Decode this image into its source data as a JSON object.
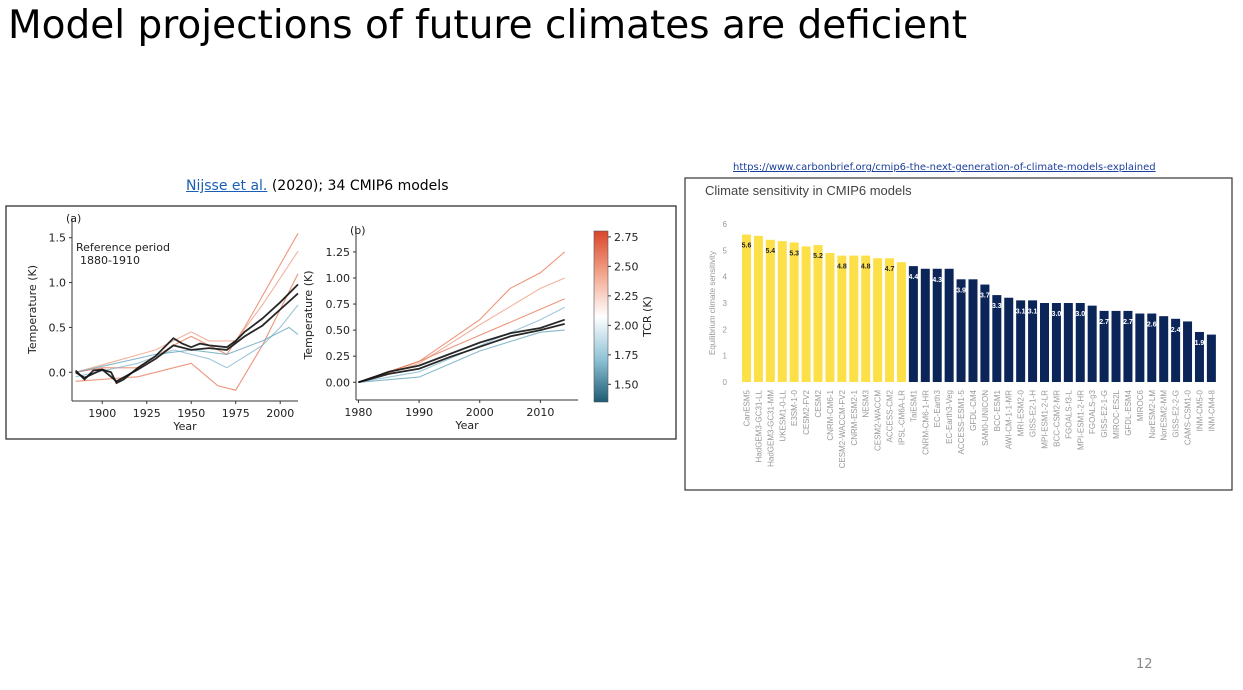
{
  "slide": {
    "title": "Model projections of future climates are deficient",
    "page_number": "12"
  },
  "left_figure": {
    "citation_link": "Nijsse et al.",
    "citation_rest": "(2020); 34 CMIP6 models"
  },
  "right_figure": {
    "source_url": "https://www.carbonbrief.org/cmip6-the-next-generation-of-climate-models-explained"
  },
  "chart_data": [
    {
      "type": "line",
      "panel_label": "(a)",
      "annotation": "Reference period\n1880-1910",
      "xlabel": "Year",
      "ylabel": "Temperature (K)",
      "xlim": [
        1883,
        2010
      ],
      "ylim": [
        -0.32,
        1.72
      ],
      "xticks": [
        1900,
        1925,
        1950,
        1975,
        2000
      ],
      "yticks": [
        "0.0",
        "0.5",
        "1.0",
        "1.5"
      ],
      "series": [
        {
          "color": "#e8714f",
          "x": [
            1885,
            1900,
            1920,
            1940,
            1950,
            1960,
            1970,
            1980,
            1990,
            2000,
            2010
          ],
          "y": [
            0,
            0.05,
            0.05,
            0.3,
            0.4,
            0.3,
            0.2,
            0.5,
            0.85,
            1.2,
            1.55
          ]
        },
        {
          "color": "#ee9a80",
          "x": [
            1885,
            1930,
            1950,
            1960,
            1975,
            1990,
            2010
          ],
          "y": [
            0,
            0.25,
            0.45,
            0.35,
            0.35,
            0.75,
            1.35
          ]
        },
        {
          "color": "#e8714f",
          "x": [
            1885,
            1920,
            1950,
            1965,
            1975,
            1990,
            2000,
            2010
          ],
          "y": [
            -0.1,
            -0.05,
            0.1,
            -0.15,
            -0.2,
            0.3,
            0.7,
            1.1
          ]
        },
        {
          "color": "#7fb6cc",
          "x": [
            1885,
            1920,
            1940,
            1960,
            1970,
            1990,
            2000,
            2010
          ],
          "y": [
            -0.05,
            0.1,
            0.25,
            0.15,
            0.05,
            0.3,
            0.5,
            0.75
          ]
        },
        {
          "color": "#5fa1b8",
          "x": [
            1885,
            1930,
            1950,
            1970,
            1990,
            2005,
            2010
          ],
          "y": [
            0,
            0.2,
            0.25,
            0.2,
            0.35,
            0.5,
            0.42
          ]
        },
        {
          "color": "#111111",
          "x": [
            1885,
            1890,
            1895,
            1900,
            1905,
            1908,
            1912,
            1920,
            1930,
            1940,
            1945,
            1950,
            1955,
            1960,
            1970,
            1975,
            1980,
            1990,
            2000,
            2010
          ],
          "y": [
            0.02,
            -0.08,
            0.02,
            0.03,
            0,
            -0.12,
            -0.08,
            0.05,
            0.18,
            0.38,
            0.32,
            0.28,
            0.32,
            0.3,
            0.28,
            0.35,
            0.45,
            0.6,
            0.78,
            0.98
          ]
        },
        {
          "color": "#111111",
          "x": [
            1885,
            1890,
            1900,
            1908,
            1920,
            1930,
            1940,
            1950,
            1960,
            1970,
            1980,
            1990,
            2000,
            2010
          ],
          "y": [
            0,
            -0.06,
            0.03,
            -0.1,
            0.03,
            0.15,
            0.3,
            0.25,
            0.27,
            0.25,
            0.4,
            0.52,
            0.7,
            0.88
          ]
        }
      ]
    },
    {
      "type": "line",
      "panel_label": "(b)",
      "xlabel": "Year",
      "ylabel": "Temperature (K)",
      "xlim": [
        1979.6,
        2016.2
      ],
      "ylim": [
        -0.17,
        1.46
      ],
      "xticks": [
        1980,
        1990,
        2000,
        2010
      ],
      "yticks": [
        "0.00",
        "0.25",
        "0.50",
        "0.75",
        "1.00",
        "1.25"
      ],
      "series": [
        {
          "color": "#e8714f",
          "x": [
            1980,
            1990,
            2000,
            2005,
            2010,
            2014
          ],
          "y": [
            0,
            0.2,
            0.6,
            0.9,
            1.05,
            1.25
          ]
        },
        {
          "color": "#ee9a80",
          "x": [
            1980,
            1990,
            2000,
            2010,
            2014
          ],
          "y": [
            0,
            0.18,
            0.55,
            0.9,
            1.0
          ]
        },
        {
          "color": "#e8714f",
          "x": [
            1980,
            1990,
            2000,
            2010,
            2014
          ],
          "y": [
            0,
            0.2,
            0.45,
            0.7,
            0.8
          ]
        },
        {
          "color": "#7fb6cc",
          "x": [
            1980,
            1990,
            2000,
            2010,
            2014
          ],
          "y": [
            0,
            0.1,
            0.35,
            0.6,
            0.72
          ]
        },
        {
          "color": "#5fa1b8",
          "x": [
            1980,
            1990,
            2000,
            2010,
            2014
          ],
          "y": [
            0,
            0.05,
            0.3,
            0.48,
            0.5
          ]
        },
        {
          "color": "#111111",
          "x": [
            1980,
            1985,
            1990,
            1995,
            2000,
            2005,
            2010,
            2014
          ],
          "y": [
            0,
            0.1,
            0.16,
            0.27,
            0.38,
            0.47,
            0.52,
            0.6
          ]
        },
        {
          "color": "#111111",
          "x": [
            1980,
            1985,
            1990,
            1995,
            2000,
            2005,
            2010,
            2014
          ],
          "y": [
            0,
            0.08,
            0.13,
            0.24,
            0.34,
            0.44,
            0.5,
            0.56
          ]
        }
      ],
      "colorbar": {
        "label": "TCR (K)",
        "range": [
          1.35,
          2.8
        ],
        "ticks": [
          "1.50",
          "1.75",
          "2.00",
          "2.25",
          "2.50",
          "2.75"
        ],
        "colors": [
          "#1d5b73",
          "#8fc3d6",
          "#ffffff",
          "#f2a58c",
          "#d9452a"
        ]
      }
    },
    {
      "type": "bar",
      "title": "Climate sensitivity in CMIP6 models",
      "ylabel": "Equilibrium climate sensitivity",
      "ylim": [
        0,
        6
      ],
      "yticks": [
        "0",
        "1",
        "2",
        "3",
        "4",
        "5",
        "6"
      ],
      "grid": false,
      "colors": {
        "above_range": "#fde047",
        "within_range": "#0b2559"
      },
      "categories": [
        "CanESM5",
        "HadGEM3-GC31-LL",
        "HadGEM3-GC31-MM",
        "UKESM1-0-LL",
        "E3SM-1-0",
        "CESM2-FV2",
        "CESM2",
        "CNRM-CM6-1",
        "CESM2-WACCM-FV2",
        "CNRM-ESM2-1",
        "NESM3",
        "CESM2-WACCM",
        "ACCESS-CM2",
        "IPSL-CM6A-LR",
        "TaiESM1",
        "CNRM-CM6-1-HR",
        "EC-Earth3",
        "EC-Earth3-Veg",
        "ACCESS-ESM1-5",
        "GFDL-CM4",
        "SAM0-UNICON",
        "BCC-ESM1",
        "AWI-CM-1-1-MR",
        "MRI-ESM2-0",
        "GISS-E2-1-H",
        "MPI-ESM1-2-LR",
        "BCC-CSM2-MR",
        "FGOALS-f3-L",
        "MPI-ESM1-2-HR",
        "FGOALS-g3",
        "GISS-E2-1-G",
        "MIROC-ES2L",
        "GFDL-ESM4",
        "MIROC6",
        "NorESM2-LM",
        "NorESM2-MM",
        "GISS-E2-2-G",
        "CAMS-CSM1-0",
        "INM-CM5-0",
        "INM-CM4-8"
      ],
      "values": [
        5.6,
        5.55,
        5.4,
        5.35,
        5.3,
        5.15,
        5.2,
        4.9,
        4.8,
        4.8,
        4.8,
        4.7,
        4.7,
        4.55,
        4.4,
        4.3,
        4.3,
        4.3,
        3.9,
        3.9,
        3.7,
        3.3,
        3.2,
        3.1,
        3.1,
        3.0,
        3.0,
        3.0,
        3.0,
        2.9,
        2.7,
        2.7,
        2.7,
        2.6,
        2.6,
        2.5,
        2.4,
        2.3,
        1.9,
        1.8
      ],
      "data_labels": [
        "5.6",
        "",
        "5.4",
        "",
        "5.3",
        "",
        "5.2",
        "",
        "4.8",
        "",
        "4.8",
        "",
        "4.7",
        "",
        "4.4",
        "",
        "4.3",
        "",
        "3.9",
        "",
        "3.7",
        "3.3",
        "",
        "3.1",
        "3.1",
        "",
        "3.0",
        "",
        "3.0",
        "",
        "2.7",
        "",
        "2.7",
        "",
        "2.6",
        "",
        "2.4",
        "",
        "1.9",
        ""
      ],
      "group": [
        "above",
        "above",
        "above",
        "above",
        "above",
        "above",
        "above",
        "above",
        "above",
        "above",
        "above",
        "above",
        "above",
        "above",
        "within",
        "within",
        "within",
        "within",
        "within",
        "within",
        "within",
        "within",
        "within",
        "within",
        "within",
        "within",
        "within",
        "within",
        "within",
        "within",
        "within",
        "within",
        "within",
        "within",
        "within",
        "within",
        "within",
        "within",
        "within",
        "within"
      ]
    }
  ]
}
